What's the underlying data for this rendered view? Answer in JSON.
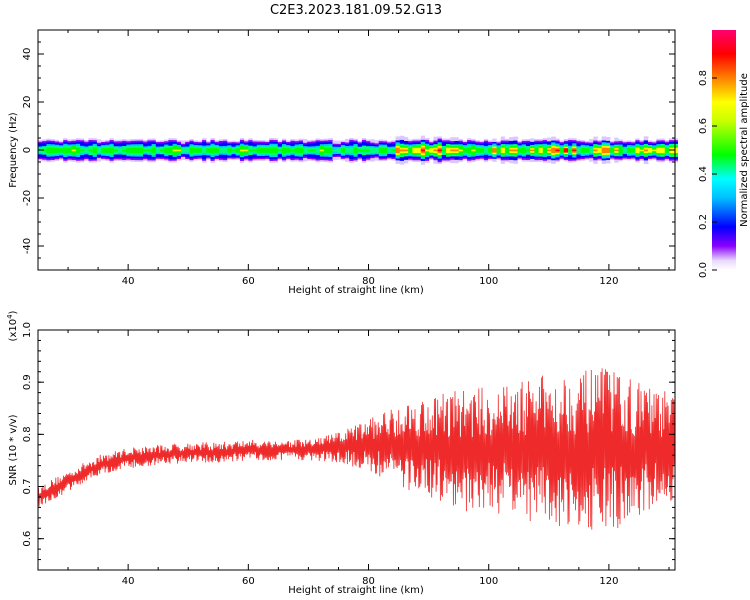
{
  "title": "C2E3.2023.181.09.52.G13",
  "colors": {
    "snr_line": "#ee2a2a",
    "colormap": [
      "#ffffff",
      "#7a00ff",
      "#0000ff",
      "#00e5ff",
      "#00ff00",
      "#ffff00",
      "#ff7f00",
      "#ff0000",
      "#ff0060"
    ]
  },
  "chart_data": [
    {
      "type": "heatmap",
      "xlabel": "Height of straight line (km)",
      "ylabel": "Frequency (Hz)",
      "xlim": [
        25,
        131
      ],
      "ylim": [
        -50,
        50
      ],
      "x_ticks": [
        "40",
        "60",
        "80",
        "100",
        "120"
      ],
      "y_ticks": [
        "40",
        "20",
        "0",
        "-20",
        "-40"
      ],
      "band": {
        "center_hz": 0,
        "halfwidth_hz": 5,
        "note": "energy concentrated near 0 Hz across all heights; peaks (red) increase beyond ~85 km"
      },
      "colorbar": {
        "label": "Normalized spectral amplitude",
        "range": [
          0.0,
          1.0
        ],
        "ticks": [
          "0.0",
          "0.2",
          "0.4",
          "0.6",
          "0.8"
        ]
      }
    },
    {
      "type": "line",
      "xlabel": "Height of straight line (km)",
      "ylabel": "SNR (10 * v/v)",
      "ylabel_multiplier": "(x10",
      "ylabel_multiplier_exp": "4",
      "ylabel_multiplier_close": ")",
      "xlim": [
        25,
        131
      ],
      "ylim": [
        0.54,
        1.0
      ],
      "x_ticks": [
        "40",
        "60",
        "80",
        "100",
        "120"
      ],
      "y_ticks": [
        "1.0",
        "0.9",
        "0.8",
        "0.7",
        "0.6"
      ],
      "series": [
        {
          "x": [
            25,
            30,
            35,
            40,
            45,
            50,
            55,
            60,
            65,
            70,
            75,
            80,
            85,
            90,
            95,
            100,
            105,
            110,
            115,
            120,
            125,
            130
          ],
          "y": [
            0.68,
            0.71,
            0.74,
            0.755,
            0.76,
            0.765,
            0.765,
            0.77,
            0.77,
            0.77,
            0.775,
            0.78,
            0.78,
            0.775,
            0.77,
            0.77,
            0.77,
            0.77,
            0.77,
            0.77,
            0.77,
            0.77
          ],
          "spread": [
            0.02,
            0.02,
            0.02,
            0.02,
            0.02,
            0.02,
            0.02,
            0.02,
            0.02,
            0.02,
            0.03,
            0.05,
            0.08,
            0.1,
            0.12,
            0.12,
            0.13,
            0.15,
            0.15,
            0.16,
            0.13,
            0.11
          ]
        }
      ]
    }
  ]
}
